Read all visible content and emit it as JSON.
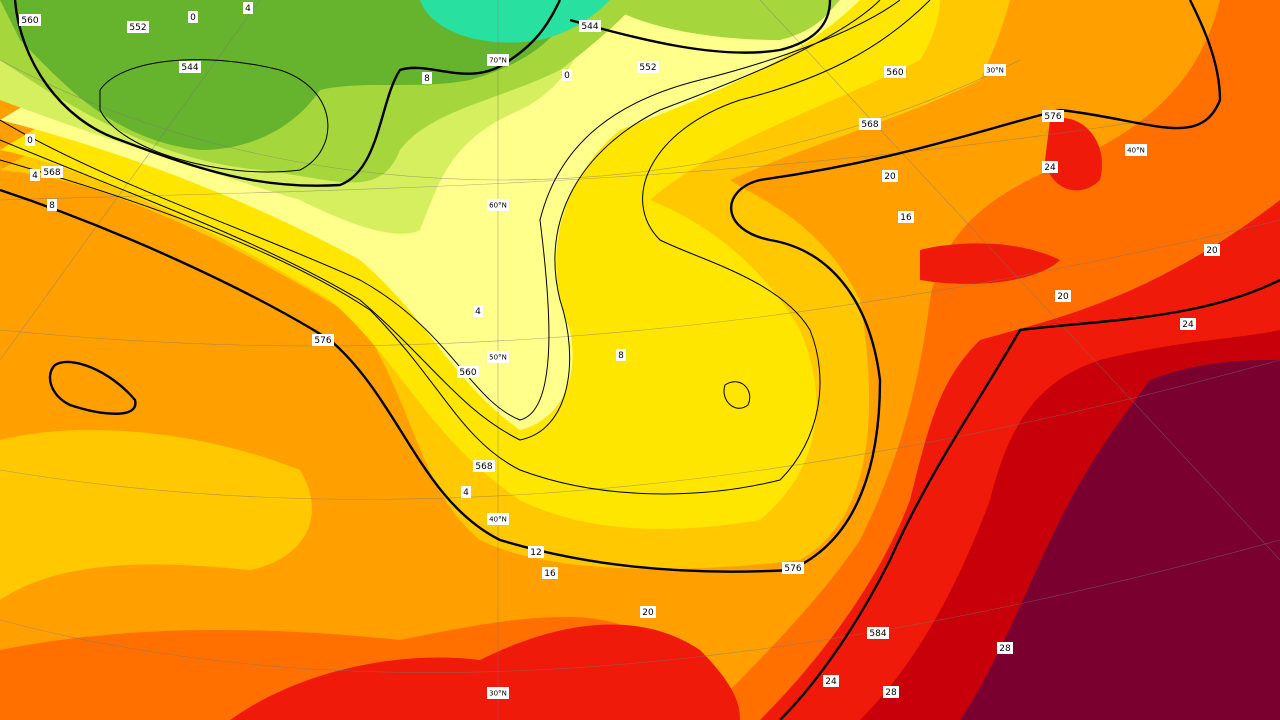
{
  "map": {
    "geopotential_labels": [
      "560",
      "552",
      "544",
      "544",
      "552",
      "560",
      "568",
      "568",
      "576",
      "560",
      "568",
      "576",
      "576",
      "584"
    ],
    "temperature_labels": [
      "0",
      "4",
      "8",
      "0",
      "4",
      "8",
      "4",
      "8",
      "4",
      "12",
      "16",
      "16",
      "20",
      "20",
      "24",
      "20",
      "20",
      "24",
      "28",
      "28",
      "24",
      "0"
    ],
    "latitude_labels": [
      "70°N",
      "60°N",
      "50°N",
      "40°N",
      "30°N",
      "30°N",
      "40°N"
    ]
  }
}
